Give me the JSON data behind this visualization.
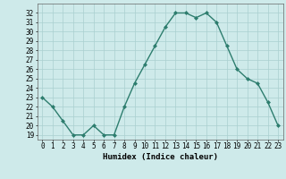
{
  "x": [
    0,
    1,
    2,
    3,
    4,
    5,
    6,
    7,
    8,
    9,
    10,
    11,
    12,
    13,
    14,
    15,
    16,
    17,
    18,
    19,
    20,
    21,
    22,
    23
  ],
  "y": [
    23,
    22,
    20.5,
    19,
    19,
    20,
    19,
    19,
    22,
    24.5,
    26.5,
    28.5,
    30.5,
    32,
    32,
    31.5,
    32,
    31,
    28.5,
    26,
    25,
    24.5,
    22.5,
    20
  ],
  "line_color": "#2d7d6e",
  "marker": "D",
  "marker_size": 2,
  "bg_color": "#ceeaea",
  "grid_color": "#aacfcf",
  "xlabel": "Humidex (Indice chaleur)",
  "ylim": [
    18.5,
    33
  ],
  "xlim": [
    -0.5,
    23.5
  ],
  "yticks": [
    19,
    20,
    21,
    22,
    23,
    24,
    25,
    26,
    27,
    28,
    29,
    30,
    31,
    32
  ],
  "xticks": [
    0,
    1,
    2,
    3,
    4,
    5,
    6,
    7,
    8,
    9,
    10,
    11,
    12,
    13,
    14,
    15,
    16,
    17,
    18,
    19,
    20,
    21,
    22,
    23
  ],
  "xlabel_fontsize": 6.5,
  "tick_fontsize": 5.5,
  "line_width": 1.0
}
